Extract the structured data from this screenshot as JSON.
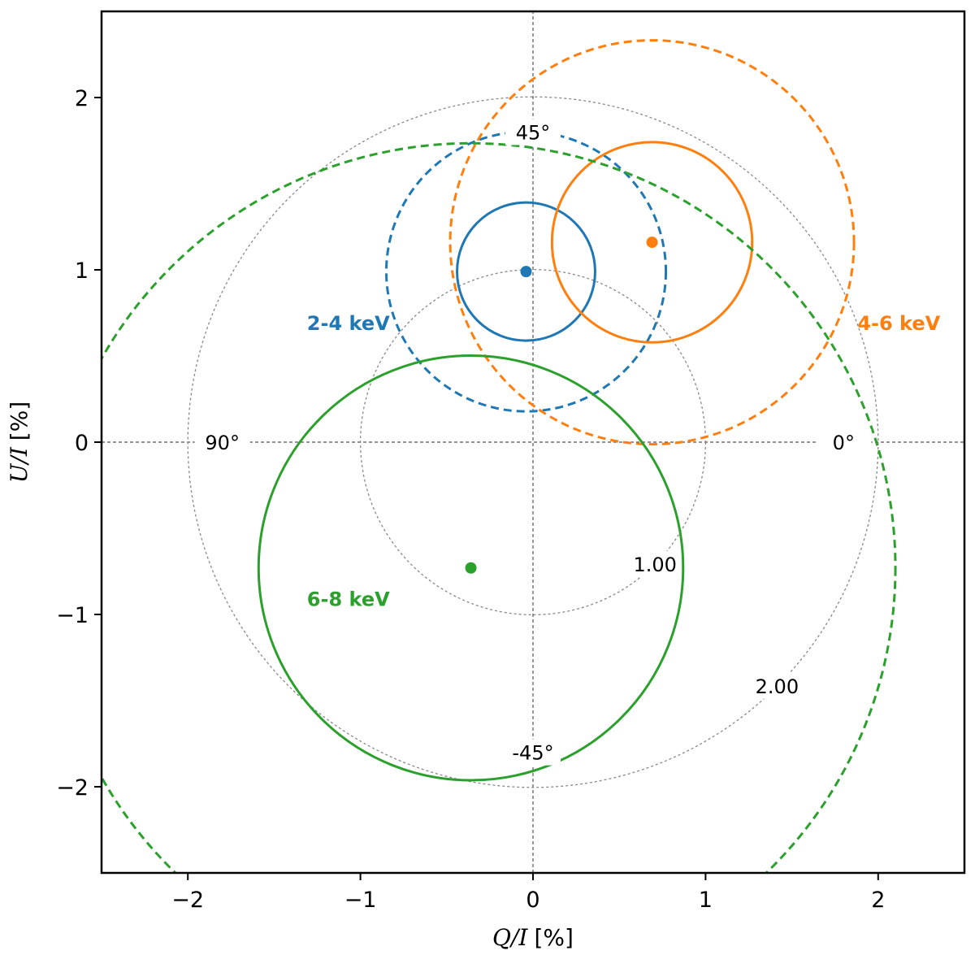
{
  "chart_data": {
    "type": "scatter",
    "title": "",
    "xlabel": {
      "var": "Q/I",
      "unit": "[%]"
    },
    "ylabel": {
      "var": "U/I",
      "unit": "[%]"
    },
    "xlim": [
      -2.5,
      2.5
    ],
    "ylim": [
      -2.5,
      2.5
    ],
    "xticks": [
      -2,
      -1,
      0,
      1,
      2
    ],
    "yticks": [
      -2,
      -1,
      0,
      1,
      2
    ],
    "xtick_labels": [
      "−2",
      "−1",
      "0",
      "1",
      "2"
    ],
    "ytick_labels": [
      "−2",
      "−1",
      "0",
      "1",
      "2"
    ],
    "grid": false,
    "reference_circles": [
      {
        "radius": 1.0,
        "label": "1.00",
        "label_angle_deg": -45
      },
      {
        "radius": 2.0,
        "label": "2.00",
        "label_angle_deg": -45
      }
    ],
    "angle_labels": [
      {
        "text": "45°",
        "q": 0.0,
        "u": 1.8
      },
      {
        "text": "-45°",
        "q": 0.0,
        "u": -1.8
      },
      {
        "text": "90°",
        "q": -1.8,
        "u": 0.0
      },
      {
        "text": "0°",
        "q": 1.8,
        "u": 0.0
      }
    ],
    "series": [
      {
        "name": "2-4 keV",
        "color": "#1f77b4",
        "point": {
          "q": -0.04,
          "u": 0.99
        },
        "contours": [
          {
            "style": "solid",
            "radius": 0.4
          },
          {
            "style": "dashed",
            "radius": 0.81
          }
        ],
        "label_pos": {
          "q": -1.07,
          "u": 0.65
        }
      },
      {
        "name": "4-6 keV",
        "color": "#ff7f0e",
        "point": {
          "q": 0.69,
          "u": 1.16
        },
        "contours": [
          {
            "style": "solid",
            "radius": 0.58
          },
          {
            "style": "dashed",
            "radius": 1.17
          }
        ],
        "label_pos": {
          "q": 2.12,
          "u": 0.65
        }
      },
      {
        "name": "6-8 keV",
        "color": "#2ca02c",
        "point": {
          "q": -0.36,
          "u": -0.73
        },
        "contours": [
          {
            "style": "solid",
            "radius": 1.23
          },
          {
            "style": "dashed",
            "radius": 2.46
          }
        ],
        "label_pos": {
          "q": -1.07,
          "u": -0.95
        }
      }
    ]
  }
}
